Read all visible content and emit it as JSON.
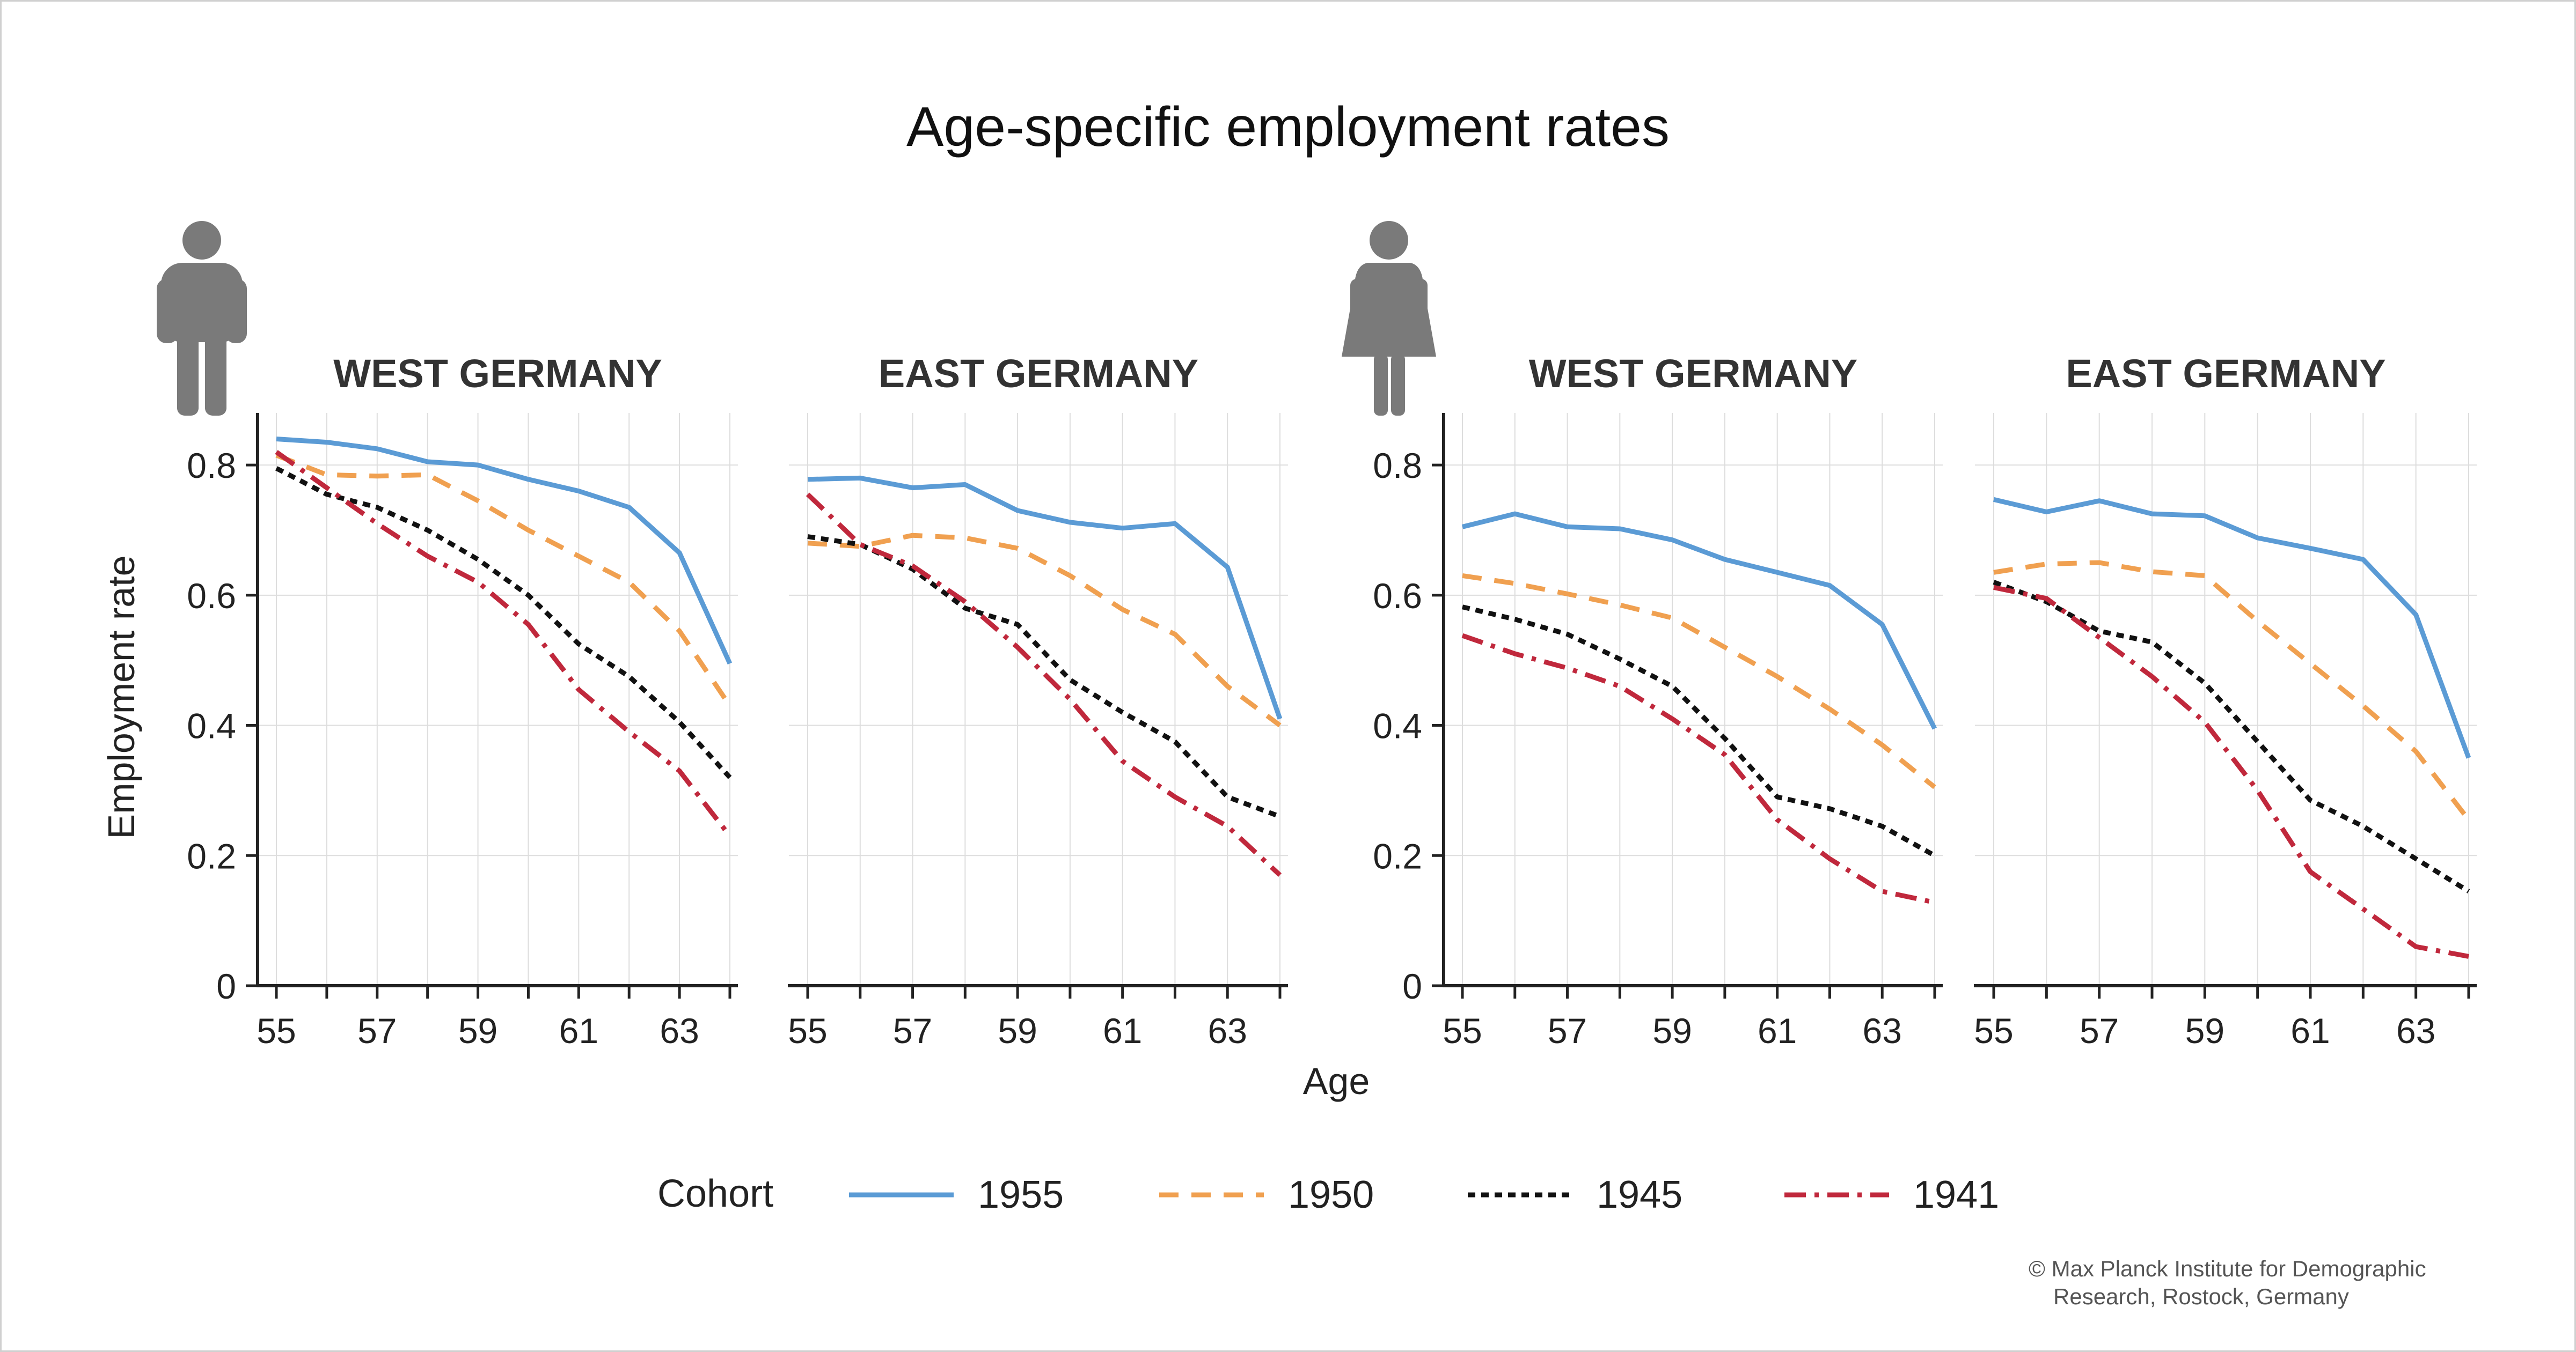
{
  "title": "Age-specific employment rates",
  "ylabel": "Employment rate",
  "xlabel": "Age",
  "legend_title": "Cohort",
  "copyright_line1": "© Max Planck Institute for Demographic",
  "copyright_line2": "Research, Rostock, Germany",
  "icons": {
    "men": "man-icon",
    "women": "woman-icon"
  },
  "colors": {
    "1955": "#5b9bd5",
    "1950": "#f0a050",
    "1945": "#111111",
    "1941": "#c0283c",
    "axis": "#222222",
    "grid": "#dddddd",
    "icon": "#7a7a7a"
  },
  "chart_data": [
    {
      "type": "line",
      "group": "men",
      "title": "WEST GERMANY",
      "x": [
        55,
        56,
        57,
        58,
        59,
        60,
        61,
        62,
        63,
        64
      ],
      "xticks": [
        55,
        57,
        59,
        61,
        63
      ],
      "yticks": [
        0,
        0.2,
        0.4,
        0.6,
        0.8
      ],
      "ylim": [
        0,
        0.88
      ],
      "xlim": [
        54.6,
        64.4
      ],
      "show_yaxis": true,
      "series": [
        {
          "name": "1955",
          "values": [
            0.84,
            0.835,
            0.825,
            0.805,
            0.8,
            0.778,
            0.76,
            0.735,
            0.665,
            0.495
          ]
        },
        {
          "name": "1950",
          "values": [
            0.815,
            0.785,
            0.783,
            0.785,
            0.745,
            0.7,
            0.66,
            0.62,
            0.545,
            0.43
          ]
        },
        {
          "name": "1945",
          "values": [
            0.795,
            0.755,
            0.735,
            0.7,
            0.655,
            0.6,
            0.525,
            0.475,
            0.405,
            0.32
          ]
        },
        {
          "name": "1941",
          "values": [
            0.82,
            0.765,
            0.71,
            0.66,
            0.62,
            0.555,
            0.455,
            0.39,
            0.33,
            0.23
          ]
        }
      ]
    },
    {
      "type": "line",
      "group": "men",
      "title": "EAST GERMANY",
      "x": [
        55,
        56,
        57,
        58,
        59,
        60,
        61,
        62,
        63,
        64
      ],
      "xticks": [
        55,
        57,
        59,
        61,
        63
      ],
      "yticks": [
        0,
        0.2,
        0.4,
        0.6,
        0.8
      ],
      "ylim": [
        0,
        0.88
      ],
      "xlim": [
        54.6,
        64.4
      ],
      "show_yaxis": false,
      "series": [
        {
          "name": "1955",
          "values": [
            0.778,
            0.78,
            0.765,
            0.77,
            0.73,
            0.712,
            0.703,
            0.71,
            0.643,
            0.41
          ]
        },
        {
          "name": "1950",
          "values": [
            0.68,
            0.675,
            0.692,
            0.688,
            0.672,
            0.63,
            0.578,
            0.54,
            0.46,
            0.4
          ]
        },
        {
          "name": "1945",
          "values": [
            0.69,
            0.678,
            0.64,
            0.58,
            0.555,
            0.47,
            0.42,
            0.375,
            0.29,
            0.26
          ]
        },
        {
          "name": "1941",
          "values": [
            0.755,
            0.678,
            0.645,
            0.59,
            0.52,
            0.44,
            0.345,
            0.29,
            0.245,
            0.17
          ]
        }
      ]
    },
    {
      "type": "line",
      "group": "women",
      "title": "WEST GERMANY",
      "x": [
        55,
        56,
        57,
        58,
        59,
        60,
        61,
        62,
        63,
        64
      ],
      "xticks": [
        55,
        57,
        59,
        61,
        63
      ],
      "yticks": [
        0,
        0.2,
        0.4,
        0.6,
        0.8
      ],
      "ylim": [
        0,
        0.88
      ],
      "xlim": [
        54.6,
        64.4
      ],
      "show_yaxis": true,
      "series": [
        {
          "name": "1955",
          "values": [
            0.705,
            0.725,
            0.705,
            0.702,
            0.685,
            0.655,
            0.635,
            0.615,
            0.555,
            0.395
          ]
        },
        {
          "name": "1950",
          "values": [
            0.63,
            0.618,
            0.602,
            0.585,
            0.565,
            0.52,
            0.475,
            0.425,
            0.37,
            0.305
          ]
        },
        {
          "name": "1945",
          "values": [
            0.582,
            0.563,
            0.54,
            0.502,
            0.46,
            0.38,
            0.29,
            0.272,
            0.245,
            0.2
          ]
        },
        {
          "name": "1941",
          "values": [
            0.538,
            0.51,
            0.488,
            0.46,
            0.41,
            0.355,
            0.255,
            0.195,
            0.145,
            0.128
          ]
        }
      ]
    },
    {
      "type": "line",
      "group": "women",
      "title": "EAST GERMANY",
      "x": [
        55,
        56,
        57,
        58,
        59,
        60,
        61,
        62,
        63,
        64
      ],
      "xticks": [
        55,
        57,
        59,
        61,
        63
      ],
      "yticks": [
        0,
        0.2,
        0.4,
        0.6,
        0.8
      ],
      "ylim": [
        0,
        0.88
      ],
      "xlim": [
        54.6,
        64.4
      ],
      "show_yaxis": false,
      "series": [
        {
          "name": "1955",
          "values": [
            0.747,
            0.728,
            0.745,
            0.725,
            0.722,
            0.688,
            0.672,
            0.655,
            0.57,
            0.35
          ]
        },
        {
          "name": "1950",
          "values": [
            0.635,
            0.648,
            0.65,
            0.636,
            0.63,
            0.56,
            0.495,
            0.43,
            0.36,
            0.255
          ]
        },
        {
          "name": "1945",
          "values": [
            0.62,
            0.59,
            0.545,
            0.528,
            0.465,
            0.375,
            0.285,
            0.245,
            0.195,
            0.145
          ]
        },
        {
          "name": "1941",
          "values": [
            0.612,
            0.595,
            0.535,
            0.475,
            0.405,
            0.3,
            0.175,
            0.118,
            0.06,
            0.045
          ]
        }
      ]
    }
  ]
}
